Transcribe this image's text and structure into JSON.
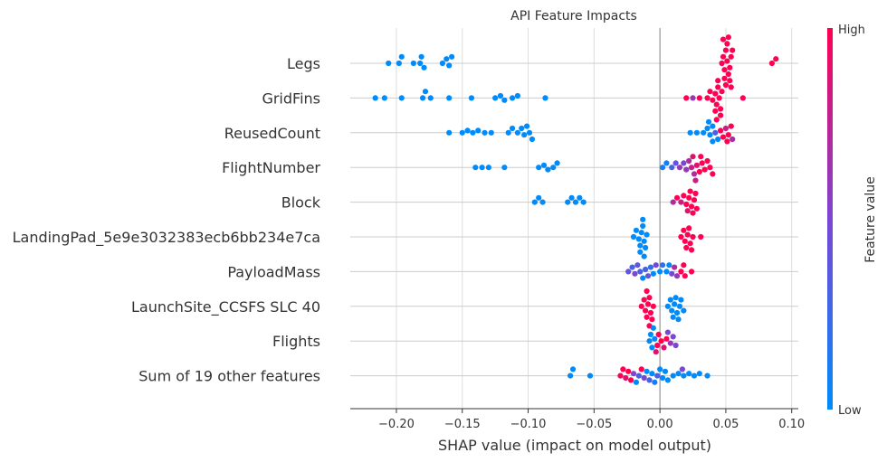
{
  "chart_data": {
    "type": "scatter",
    "title": "API Feature Impacts",
    "xlabel": "SHAP value (impact on model output)",
    "xlim": [
      -0.235,
      0.105
    ],
    "xticks": [
      -0.2,
      -0.15,
      -0.1,
      -0.05,
      0.0,
      0.05,
      0.1
    ],
    "xtick_labels": [
      "−0.20",
      "−0.15",
      "−0.10",
      "−0.05",
      "0.00",
      "0.05",
      "0.10"
    ],
    "grid": true,
    "colorbar": {
      "title": "Feature value",
      "high_label": "High",
      "low_label": "Low",
      "low_color": "#008bfb",
      "mid_color": "#7a47d3",
      "high_color": "#ff0052"
    },
    "features": [
      {
        "name": "Legs",
        "points": [
          [
            -0.206,
            0
          ],
          [
            -0.198,
            0
          ],
          [
            -0.196,
            0
          ],
          [
            -0.187,
            0
          ],
          [
            -0.182,
            0
          ],
          [
            -0.181,
            0
          ],
          [
            -0.179,
            0
          ],
          [
            -0.165,
            0
          ],
          [
            -0.162,
            0
          ],
          [
            -0.16,
            0
          ],
          [
            -0.158,
            0
          ],
          [
            0.047,
            1
          ],
          [
            0.048,
            1
          ],
          [
            0.049,
            1
          ],
          [
            0.05,
            1
          ],
          [
            0.051,
            1
          ],
          [
            0.052,
            1
          ],
          [
            0.053,
            1
          ],
          [
            0.054,
            1
          ],
          [
            0.055,
            1
          ],
          [
            0.049,
            1
          ],
          [
            0.051,
            1
          ],
          [
            0.053,
            1
          ],
          [
            0.05,
            1
          ],
          [
            0.052,
            1
          ],
          [
            0.048,
            1
          ],
          [
            0.054,
            1
          ],
          [
            0.085,
            1
          ],
          [
            0.088,
            1
          ]
        ]
      },
      {
        "name": "GridFins",
        "points": [
          [
            -0.216,
            0
          ],
          [
            -0.209,
            0
          ],
          [
            -0.196,
            0
          ],
          [
            -0.18,
            0
          ],
          [
            -0.178,
            0
          ],
          [
            -0.174,
            0
          ],
          [
            -0.16,
            0
          ],
          [
            -0.143,
            0
          ],
          [
            -0.125,
            0
          ],
          [
            -0.121,
            0
          ],
          [
            -0.118,
            0
          ],
          [
            -0.112,
            0
          ],
          [
            -0.108,
            0
          ],
          [
            -0.087,
            0
          ],
          [
            0.02,
            1
          ],
          [
            0.025,
            0.6
          ],
          [
            0.03,
            1
          ],
          [
            0.036,
            1
          ],
          [
            0.038,
            1
          ],
          [
            0.04,
            1
          ],
          [
            0.042,
            1
          ],
          [
            0.043,
            1
          ],
          [
            0.044,
            1
          ],
          [
            0.045,
            1
          ],
          [
            0.046,
            1
          ],
          [
            0.047,
            1
          ],
          [
            0.042,
            1
          ],
          [
            0.044,
            1
          ],
          [
            0.046,
            1
          ],
          [
            0.043,
            1
          ],
          [
            0.063,
            1
          ]
        ]
      },
      {
        "name": "ReusedCount",
        "points": [
          [
            -0.16,
            0
          ],
          [
            -0.15,
            0
          ],
          [
            -0.146,
            0
          ],
          [
            -0.142,
            0
          ],
          [
            -0.138,
            0
          ],
          [
            -0.133,
            0
          ],
          [
            -0.128,
            0
          ],
          [
            -0.115,
            0
          ],
          [
            -0.112,
            0
          ],
          [
            -0.108,
            0
          ],
          [
            -0.105,
            0
          ],
          [
            -0.103,
            0
          ],
          [
            -0.101,
            0
          ],
          [
            -0.099,
            0
          ],
          [
            -0.097,
            0
          ],
          [
            0.023,
            0
          ],
          [
            0.028,
            0
          ],
          [
            0.033,
            0
          ],
          [
            0.036,
            0
          ],
          [
            0.038,
            0
          ],
          [
            0.04,
            0
          ],
          [
            0.042,
            0.3
          ],
          [
            0.044,
            0
          ],
          [
            0.046,
            1
          ],
          [
            0.048,
            1
          ],
          [
            0.05,
            0.8
          ],
          [
            0.052,
            1
          ],
          [
            0.054,
            1
          ],
          [
            0.055,
            0.7
          ],
          [
            0.04,
            0
          ],
          [
            0.037,
            0
          ],
          [
            0.051,
            1
          ]
        ]
      },
      {
        "name": "FlightNumber",
        "points": [
          [
            -0.14,
            0
          ],
          [
            -0.135,
            0
          ],
          [
            -0.13,
            0
          ],
          [
            -0.118,
            0
          ],
          [
            -0.092,
            0
          ],
          [
            -0.088,
            0
          ],
          [
            -0.085,
            0
          ],
          [
            -0.081,
            0
          ],
          [
            -0.078,
            0
          ],
          [
            0.002,
            0.1
          ],
          [
            0.005,
            0.1
          ],
          [
            0.009,
            0.3
          ],
          [
            0.012,
            0.4
          ],
          [
            0.015,
            0.6
          ],
          [
            0.018,
            0.5
          ],
          [
            0.02,
            0.6
          ],
          [
            0.022,
            0.7
          ],
          [
            0.024,
            0.8
          ],
          [
            0.026,
            0.7
          ],
          [
            0.028,
            0.9
          ],
          [
            0.03,
            1
          ],
          [
            0.032,
            1
          ],
          [
            0.034,
            1
          ],
          [
            0.036,
            1
          ],
          [
            0.038,
            1
          ],
          [
            0.04,
            1
          ],
          [
            0.025,
            0.9
          ],
          [
            0.031,
            1
          ],
          [
            0.027,
            0.8
          ]
        ]
      },
      {
        "name": "Block",
        "points": [
          [
            -0.095,
            0
          ],
          [
            -0.092,
            0
          ],
          [
            -0.089,
            0
          ],
          [
            -0.07,
            0
          ],
          [
            -0.067,
            0
          ],
          [
            -0.064,
            0
          ],
          [
            -0.061,
            0
          ],
          [
            -0.058,
            0
          ],
          [
            0.01,
            0.7
          ],
          [
            0.013,
            1
          ],
          [
            0.016,
            0.8
          ],
          [
            0.018,
            1
          ],
          [
            0.02,
            1
          ],
          [
            0.021,
            0.9
          ],
          [
            0.022,
            1
          ],
          [
            0.023,
            1
          ],
          [
            0.024,
            1
          ],
          [
            0.025,
            1
          ],
          [
            0.026,
            1
          ],
          [
            0.027,
            1
          ],
          [
            0.028,
            1
          ]
        ]
      },
      {
        "name": "LandingPad_5e9e3032383ecb6bb234e7ca",
        "points": [
          [
            -0.02,
            0
          ],
          [
            -0.018,
            0
          ],
          [
            -0.016,
            0
          ],
          [
            -0.015,
            0
          ],
          [
            -0.014,
            0
          ],
          [
            -0.013,
            0
          ],
          [
            -0.012,
            0
          ],
          [
            -0.011,
            0
          ],
          [
            -0.01,
            0
          ],
          [
            -0.013,
            0
          ],
          [
            -0.015,
            0
          ],
          [
            -0.012,
            0
          ],
          [
            0.016,
            1
          ],
          [
            0.018,
            1
          ],
          [
            0.019,
            1
          ],
          [
            0.02,
            1
          ],
          [
            0.021,
            1
          ],
          [
            0.022,
            1
          ],
          [
            0.023,
            1
          ],
          [
            0.024,
            1
          ],
          [
            0.025,
            1
          ],
          [
            0.031,
            1
          ]
        ]
      },
      {
        "name": "PayloadMass",
        "points": [
          [
            -0.024,
            0.4
          ],
          [
            -0.021,
            0.3
          ],
          [
            -0.019,
            0.5
          ],
          [
            -0.017,
            0.4
          ],
          [
            -0.015,
            0.3
          ],
          [
            -0.013,
            0
          ],
          [
            -0.011,
            0.3
          ],
          [
            -0.009,
            0.4
          ],
          [
            -0.007,
            0.2
          ],
          [
            -0.005,
            0
          ],
          [
            -0.003,
            0.5
          ],
          [
            0.0,
            0
          ],
          [
            0.002,
            0.2
          ],
          [
            0.005,
            0
          ],
          [
            0.007,
            0
          ],
          [
            0.009,
            0.5
          ],
          [
            0.011,
            0.7
          ],
          [
            0.013,
            0.6
          ],
          [
            0.016,
            1
          ],
          [
            0.018,
            1
          ],
          [
            0.019,
            1
          ],
          [
            0.024,
            1
          ]
        ]
      },
      {
        "name": "LaunchSite_CCSFS SLC 40",
        "points": [
          [
            -0.014,
            1
          ],
          [
            -0.012,
            1
          ],
          [
            -0.011,
            1
          ],
          [
            -0.01,
            1
          ],
          [
            -0.009,
            1
          ],
          [
            -0.008,
            1
          ],
          [
            -0.007,
            1
          ],
          [
            -0.006,
            1
          ],
          [
            -0.005,
            1
          ],
          [
            -0.01,
            1
          ],
          [
            -0.008,
            1
          ],
          [
            0.006,
            0
          ],
          [
            0.008,
            0
          ],
          [
            0.009,
            0
          ],
          [
            0.01,
            0
          ],
          [
            0.011,
            0
          ],
          [
            0.012,
            0
          ],
          [
            0.013,
            0
          ],
          [
            0.014,
            0
          ],
          [
            0.015,
            0
          ],
          [
            0.016,
            0
          ],
          [
            0.018,
            0
          ]
        ]
      },
      {
        "name": "Flights",
        "points": [
          [
            -0.008,
            0
          ],
          [
            -0.007,
            0
          ],
          [
            -0.006,
            0
          ],
          [
            -0.005,
            0
          ],
          [
            -0.004,
            0
          ],
          [
            -0.003,
            0.9
          ],
          [
            -0.002,
            1
          ],
          [
            -0.001,
            1
          ],
          [
            0.001,
            1
          ],
          [
            0.003,
            0.9
          ],
          [
            0.005,
            1
          ],
          [
            0.006,
            0.5
          ],
          [
            0.008,
            0.6
          ],
          [
            0.01,
            0.5
          ],
          [
            0.012,
            0.5
          ]
        ]
      },
      {
        "name": "Sum of 19 other features",
        "points": [
          [
            -0.068,
            0
          ],
          [
            -0.066,
            0
          ],
          [
            -0.053,
            0
          ],
          [
            -0.03,
            1
          ],
          [
            -0.028,
            1
          ],
          [
            -0.026,
            0.9
          ],
          [
            -0.024,
            1
          ],
          [
            -0.022,
            1
          ],
          [
            -0.02,
            0.5
          ],
          [
            -0.018,
            0
          ],
          [
            -0.016,
            0.3
          ],
          [
            -0.014,
            1
          ],
          [
            -0.012,
            0.5
          ],
          [
            -0.01,
            0
          ],
          [
            -0.008,
            0.3
          ],
          [
            -0.006,
            0
          ],
          [
            -0.004,
            0.1
          ],
          [
            -0.002,
            0.3
          ],
          [
            0.0,
            0
          ],
          [
            0.002,
            0
          ],
          [
            0.004,
            0
          ],
          [
            0.006,
            0
          ],
          [
            0.01,
            0
          ],
          [
            0.014,
            0
          ],
          [
            0.018,
            0
          ],
          [
            0.022,
            0
          ],
          [
            0.026,
            0
          ],
          [
            0.03,
            0
          ],
          [
            0.036,
            0
          ],
          [
            0.017,
            0.5
          ]
        ]
      }
    ]
  }
}
